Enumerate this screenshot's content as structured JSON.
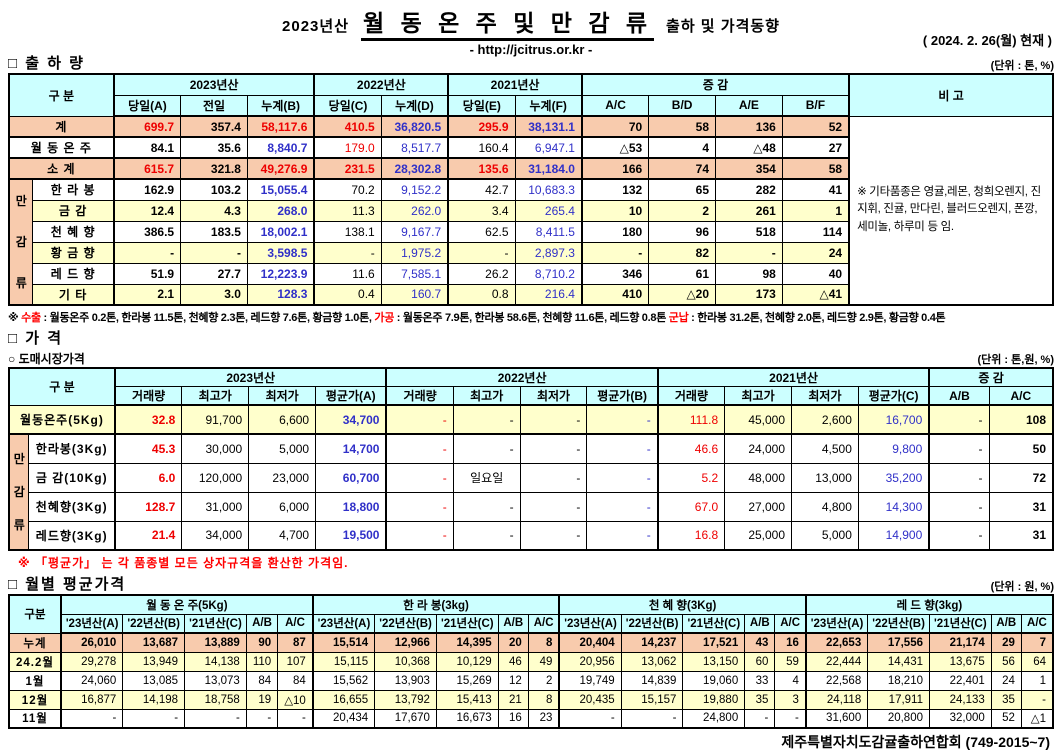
{
  "header": {
    "year_prefix": "2023년산",
    "title": "월 동 온 주 및 만 감 류",
    "title_suffix": "출하 및 가격동향",
    "url": "- http://jcitrus.or.kr -",
    "as_of": "( 2024.  2. 26(월) 현재 )"
  },
  "shipment": {
    "heading": "□ 출 하 량",
    "unit": "(단위 : 톤, %)",
    "col_label": "구    분",
    "remark_label": "비  고",
    "group_label": "만\n감\n류",
    "groups": [
      {
        "label": "2023년산",
        "cols": [
          "당일(A)",
          "전일",
          "누계(B)"
        ]
      },
      {
        "label": "2022년산",
        "cols": [
          "당일(C)",
          "누계(D)"
        ]
      },
      {
        "label": "2021년산",
        "cols": [
          "당일(E)",
          "누계(F)"
        ]
      },
      {
        "label": "증      감",
        "cols": [
          "A/C",
          "B/D",
          "A/E",
          "B/F"
        ]
      }
    ],
    "rows": [
      {
        "label": "계",
        "style": "total",
        "cells": [
          [
            "699.7",
            "r"
          ],
          [
            "357.4"
          ],
          [
            "58,117.6",
            "r"
          ],
          [
            "410.5",
            "r"
          ],
          [
            "36,820.5",
            "b"
          ],
          [
            "295.9",
            "r"
          ],
          [
            "38,131.1",
            "b"
          ],
          [
            "70"
          ],
          [
            "58"
          ],
          [
            "136"
          ],
          [
            "52"
          ]
        ]
      },
      {
        "label": "월 동 온 주",
        "style": "w",
        "hatch": true,
        "cells": [
          [
            "84.1"
          ],
          [
            "35.6"
          ],
          [
            "8,840.7",
            "b"
          ],
          [
            "179.0",
            "r"
          ],
          [
            "8,517.7",
            "b"
          ],
          [
            "160.4"
          ],
          [
            "6,947.1",
            "b"
          ],
          [
            "△53"
          ],
          [
            "4"
          ],
          [
            "△48"
          ],
          [
            "27"
          ]
        ]
      },
      {
        "label": "소    계",
        "style": "total",
        "cells": [
          [
            "615.7",
            "r"
          ],
          [
            "321.8"
          ],
          [
            "49,276.9",
            "r"
          ],
          [
            "231.5",
            "r"
          ],
          [
            "28,302.8",
            "b"
          ],
          [
            "135.6",
            "r"
          ],
          [
            "31,184.0",
            "b"
          ],
          [
            "166"
          ],
          [
            "74"
          ],
          [
            "354"
          ],
          [
            "58"
          ]
        ]
      },
      {
        "label": "한 라 봉",
        "style": "w",
        "grouped": true,
        "cells": [
          [
            "162.9"
          ],
          [
            "103.2"
          ],
          [
            "15,055.4",
            "b"
          ],
          [
            "70.2"
          ],
          [
            "9,152.2",
            "b"
          ],
          [
            "42.7"
          ],
          [
            "10,683.3",
            "b"
          ],
          [
            "132"
          ],
          [
            "65"
          ],
          [
            "282"
          ],
          [
            "41"
          ]
        ]
      },
      {
        "label": "금    감",
        "style": "y",
        "grouped": true,
        "cells": [
          [
            "12.4"
          ],
          [
            "4.3"
          ],
          [
            "268.0",
            "b"
          ],
          [
            "11.3"
          ],
          [
            "262.0",
            "b"
          ],
          [
            "3.4"
          ],
          [
            "265.4",
            "b"
          ],
          [
            "10"
          ],
          [
            "2"
          ],
          [
            "261"
          ],
          [
            "1"
          ]
        ]
      },
      {
        "label": "천 혜 향",
        "style": "w",
        "grouped": true,
        "cells": [
          [
            "386.5"
          ],
          [
            "183.5"
          ],
          [
            "18,002.1",
            "b"
          ],
          [
            "138.1"
          ],
          [
            "9,167.7",
            "b"
          ],
          [
            "62.5"
          ],
          [
            "8,411.5",
            "b"
          ],
          [
            "180"
          ],
          [
            "96"
          ],
          [
            "518"
          ],
          [
            "114"
          ]
        ]
      },
      {
        "label": "황 금 향",
        "style": "y",
        "grouped": true,
        "cells": [
          [
            "-"
          ],
          [
            "-"
          ],
          [
            "3,598.5",
            "b"
          ],
          [
            "-"
          ],
          [
            "1,975.2",
            "b"
          ],
          [
            "-"
          ],
          [
            "2,897.3",
            "b"
          ],
          [
            "-"
          ],
          [
            "82"
          ],
          [
            "-"
          ],
          [
            "24"
          ]
        ]
      },
      {
        "label": "레 드 향",
        "style": "w",
        "grouped": true,
        "cells": [
          [
            "51.9"
          ],
          [
            "27.7"
          ],
          [
            "12,223.9",
            "b"
          ],
          [
            "11.6"
          ],
          [
            "7,585.1",
            "b"
          ],
          [
            "26.2"
          ],
          [
            "8,710.2",
            "b"
          ],
          [
            "346"
          ],
          [
            "61"
          ],
          [
            "98"
          ],
          [
            "40"
          ]
        ]
      },
      {
        "label": "기    타",
        "style": "y",
        "grouped": true,
        "cells": [
          [
            "2.1"
          ],
          [
            "3.0"
          ],
          [
            "128.3",
            "b"
          ],
          [
            "0.4"
          ],
          [
            "160.7",
            "b"
          ],
          [
            "0.8"
          ],
          [
            "216.4",
            "b"
          ],
          [
            "410"
          ],
          [
            "△20"
          ],
          [
            "173"
          ],
          [
            "△41"
          ]
        ]
      }
    ],
    "remark": "※ 기타품종은 영귤,레몬, 청희오렌지, 진지휘, 진귤, 만다린, 블러드오렌지, 폰깡,세미놀, 하루미 등 임.",
    "footnote_segments": [
      [
        "※ ",
        "k"
      ],
      [
        "수출",
        "r"
      ],
      [
        " : 월동온주 0.2톤, 한라봉 11.5톤, 천혜향 2.3톤, 레드향 7.6톤, 황금향 1.0톤, ",
        "k"
      ],
      [
        "가공",
        "r"
      ],
      [
        " : 월동온주 7.9톤, 한라봉 58.6톤, 천혜향 11.6톤, 레드향 0.8톤 ",
        "k"
      ],
      [
        "군납",
        "r"
      ],
      [
        " : 한라봉 31.2톤, 천혜향 2.0톤, 레드향 2.9톤, 황금향 0.4톤",
        "k"
      ]
    ]
  },
  "price": {
    "heading": "□ 가     격",
    "subheading": "○ 도매시장가격",
    "unit": "(단위 : 톤,원, %)",
    "col_label": "구    분",
    "group_label": "만\n감\n류",
    "groups": [
      {
        "label": "2023년산",
        "cols": [
          "거래량",
          "최고가",
          "최저가",
          "평균가(A)"
        ]
      },
      {
        "label": "2022년산",
        "cols": [
          "거래량",
          "최고가",
          "최저가",
          "평균가(B)"
        ]
      },
      {
        "label": "2021년산",
        "cols": [
          "거래량",
          "최고가",
          "최저가",
          "평균가(C)"
        ]
      },
      {
        "label": "증  감",
        "cols": [
          "A/B",
          "A/C"
        ]
      }
    ],
    "rows": [
      {
        "label": "월동온주(5Kg)",
        "style": "y",
        "hatch": true,
        "cells": [
          [
            "32.8",
            "r"
          ],
          [
            "91,700"
          ],
          [
            "6,600"
          ],
          [
            "34,700",
            "b"
          ],
          [
            "-",
            "r"
          ],
          [
            "-"
          ],
          [
            "-"
          ],
          [
            "-",
            "b"
          ],
          [
            "111.8",
            "r"
          ],
          [
            "45,000"
          ],
          [
            "2,600"
          ],
          [
            "16,700",
            "b"
          ],
          [
            "-"
          ],
          [
            "108"
          ]
        ]
      },
      {
        "label": "한라봉(3Kg)",
        "style": "w",
        "grouped": true,
        "cells": [
          [
            "45.3",
            "r"
          ],
          [
            "30,000"
          ],
          [
            "5,000"
          ],
          [
            "14,700",
            "b"
          ],
          [
            "-",
            "r"
          ],
          [
            "-"
          ],
          [
            "-"
          ],
          [
            "-",
            "b"
          ],
          [
            "46.6",
            "r"
          ],
          [
            "24,000"
          ],
          [
            "4,500"
          ],
          [
            "9,800",
            "b"
          ],
          [
            "-"
          ],
          [
            "50"
          ]
        ]
      },
      {
        "label": "금 감(10Kg)",
        "style": "w",
        "grouped": true,
        "cells": [
          [
            "6.0",
            "r"
          ],
          [
            "120,000"
          ],
          [
            "23,000"
          ],
          [
            "60,700",
            "b"
          ],
          [
            "-",
            "r"
          ],
          [
            "일요일"
          ],
          [
            "-"
          ],
          [
            "-",
            "b"
          ],
          [
            "5.2",
            "r"
          ],
          [
            "48,000"
          ],
          [
            "13,000"
          ],
          [
            "35,200",
            "b"
          ],
          [
            "-"
          ],
          [
            "72"
          ]
        ]
      },
      {
        "label": "천혜향(3Kg)",
        "style": "w",
        "grouped": true,
        "cells": [
          [
            "128.7",
            "r"
          ],
          [
            "31,000"
          ],
          [
            "6,000"
          ],
          [
            "18,800",
            "b"
          ],
          [
            "-",
            "r"
          ],
          [
            "-"
          ],
          [
            "-"
          ],
          [
            "-",
            "b"
          ],
          [
            "67.0",
            "r"
          ],
          [
            "27,000"
          ],
          [
            "4,800"
          ],
          [
            "14,300",
            "b"
          ],
          [
            "-"
          ],
          [
            "31"
          ]
        ]
      },
      {
        "label": "레드향(3Kg)",
        "style": "w",
        "grouped": true,
        "cells": [
          [
            "21.4",
            "r"
          ],
          [
            "34,000"
          ],
          [
            "4,700"
          ],
          [
            "19,500",
            "b"
          ],
          [
            "-",
            "r"
          ],
          [
            "-"
          ],
          [
            "-"
          ],
          [
            "-",
            "b"
          ],
          [
            "16.8",
            "r"
          ],
          [
            "25,000"
          ],
          [
            "5,000"
          ],
          [
            "14,900",
            "b"
          ],
          [
            "-"
          ],
          [
            "31"
          ]
        ]
      }
    ],
    "note": "※  「평균가」 는 각 품종별 모든 상자규격을 환산한 가격임."
  },
  "monthly": {
    "heading": "□ 월별 평균가격",
    "unit": "(단위 : 원, %)",
    "col_label": "구분",
    "groups": [
      {
        "label": "월 동 온 주(5Kg)"
      },
      {
        "label": "한  라  봉(3kg)"
      },
      {
        "label": "천 혜 향(3Kg)"
      },
      {
        "label": "레  드  향(3kg)"
      }
    ],
    "sub_cols": [
      "'23년산(A)",
      "'22년산(B)",
      "'21년산(C)",
      "A/B",
      "A/C"
    ],
    "rows": [
      {
        "label": "누계",
        "style": "total",
        "cells": [
          "26,010",
          "13,687",
          "13,889",
          "90",
          "87",
          "15,514",
          "12,966",
          "14,395",
          "20",
          "8",
          "20,404",
          "14,237",
          "17,521",
          "43",
          "16",
          "22,653",
          "17,556",
          "21,174",
          "29",
          "7"
        ]
      },
      {
        "label": "24.2월",
        "style": "y",
        "cells": [
          "29,278",
          "13,949",
          "14,138",
          "110",
          "107",
          "15,115",
          "10,368",
          "10,129",
          "46",
          "49",
          "20,956",
          "13,062",
          "13,150",
          "60",
          "59",
          "22,444",
          "14,431",
          "13,675",
          "56",
          "64"
        ]
      },
      {
        "label": "1월",
        "style": "w",
        "cells": [
          "24,060",
          "13,085",
          "13,073",
          "84",
          "84",
          "15,562",
          "13,903",
          "15,269",
          "12",
          "2",
          "19,749",
          "14,839",
          "19,060",
          "33",
          "4",
          "22,568",
          "18,210",
          "22,401",
          "24",
          "1"
        ]
      },
      {
        "label": "12월",
        "style": "y",
        "cells": [
          "16,877",
          "14,198",
          "18,758",
          "19",
          "△10",
          "16,655",
          "13,792",
          "15,413",
          "21",
          "8",
          "20,435",
          "15,157",
          "19,880",
          "35",
          "3",
          "24,118",
          "17,911",
          "24,133",
          "35",
          "-"
        ]
      },
      {
        "label": "11월",
        "style": "w",
        "cells": [
          "-",
          "-",
          "-",
          "-",
          "-",
          "20,434",
          "17,670",
          "16,673",
          "16",
          "23",
          "-",
          "-",
          "24,800",
          "-",
          "-",
          "31,600",
          "20,800",
          "32,000",
          "52",
          "△1"
        ]
      }
    ]
  },
  "footer": "제주특별자치도감귤출하연합회 (749-2015~7)"
}
